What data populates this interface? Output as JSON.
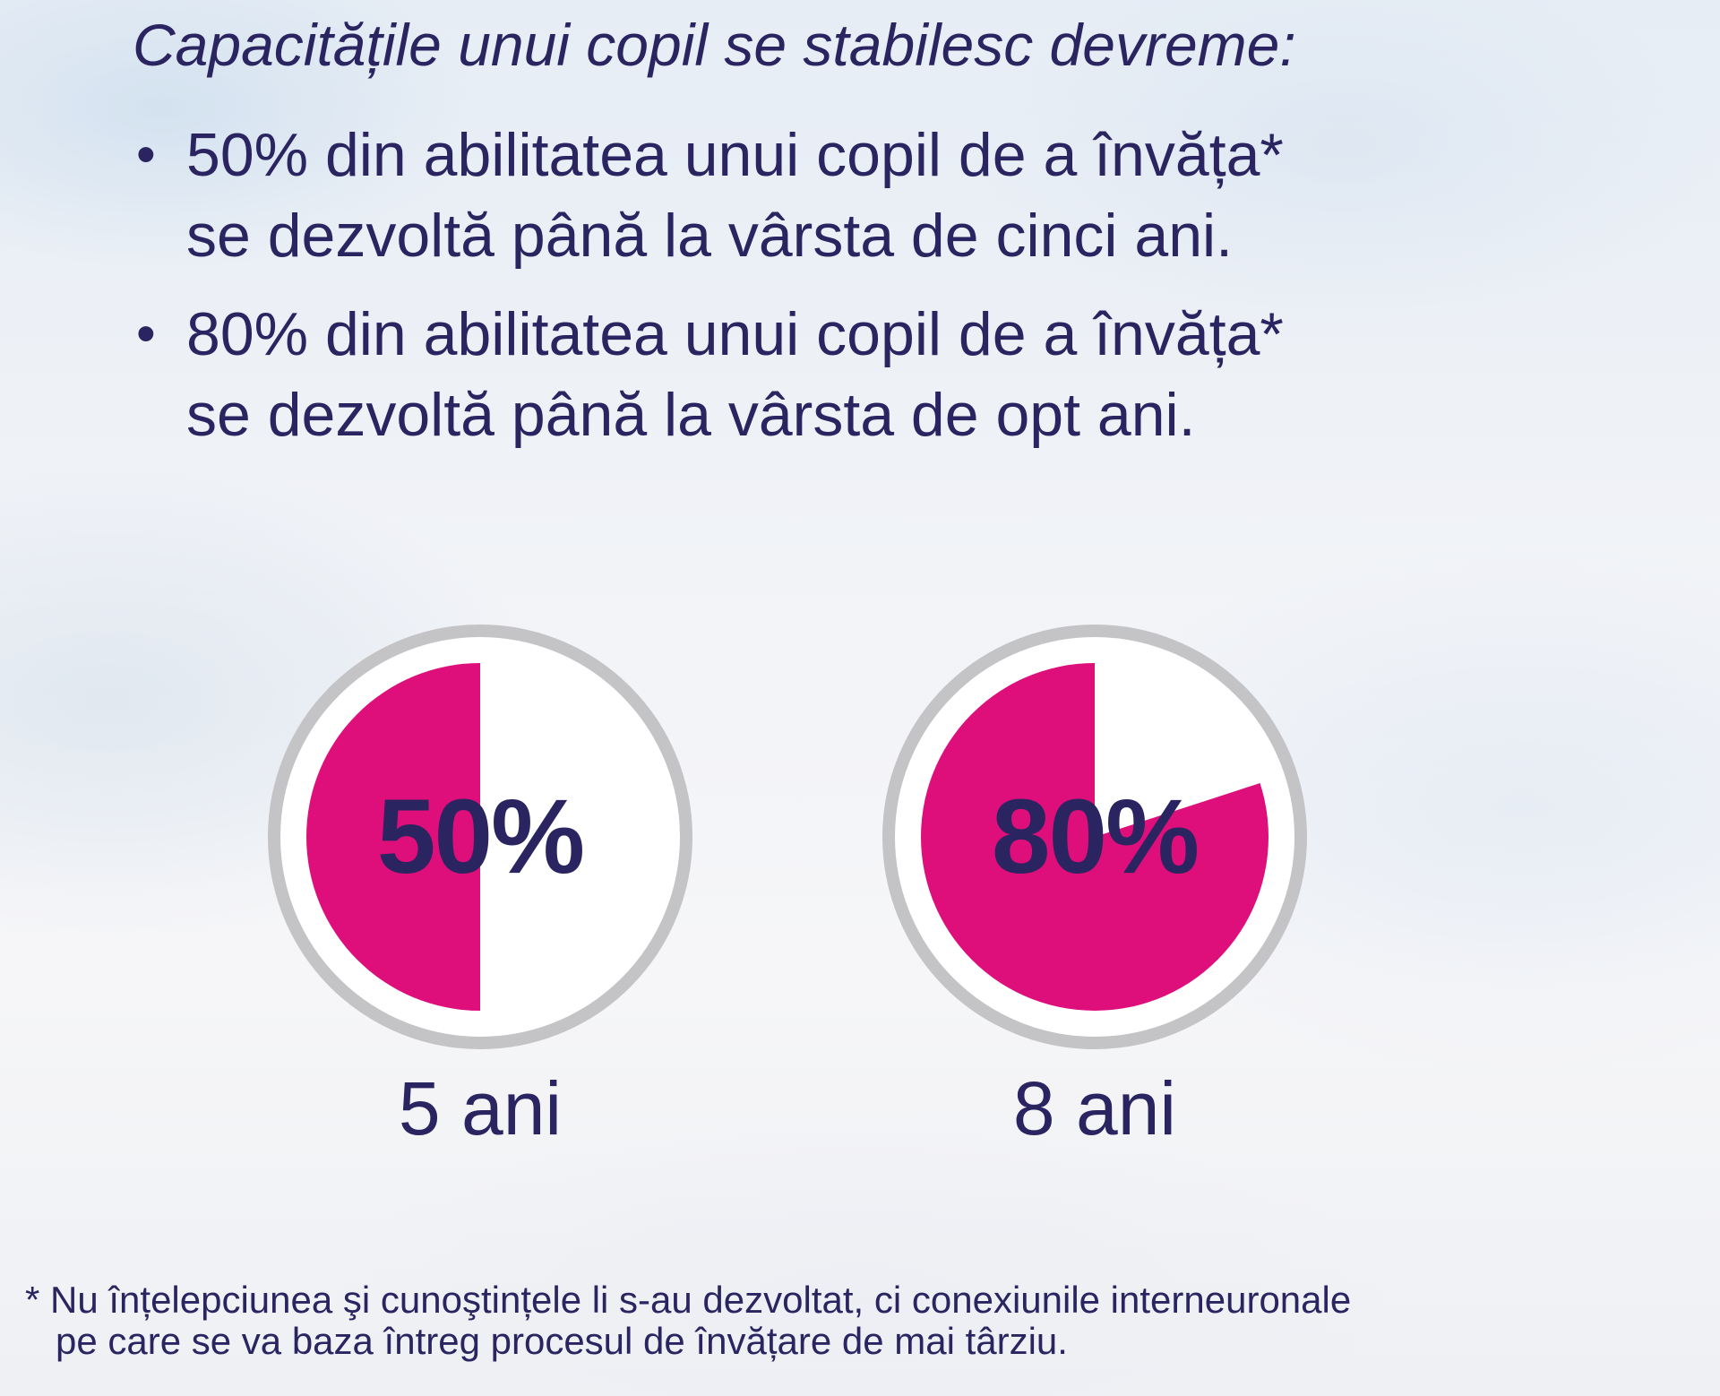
{
  "headline": "Capacitățile unui copil se stabilesc devreme:",
  "bullets": [
    {
      "marker": "•",
      "line1": "50% din abilitatea unui copil de a învăța*",
      "line2": "se dezvoltă până la vârsta de cinci ani."
    },
    {
      "marker": "•",
      "line1": "80% din abilitatea unui copil de a învăța*",
      "line2": "se dezvoltă până la vârsta de opt ani."
    }
  ],
  "chart_data": [
    {
      "type": "pie",
      "value_percent": 50,
      "label": "50%",
      "caption": "5 ani"
    },
    {
      "type": "pie",
      "value_percent": 80,
      "label": "80%",
      "caption": "8 ani"
    }
  ],
  "colors": {
    "text": "#2a2461",
    "fill": "#de0f7b",
    "ring": "#c4c4c6",
    "disc": "#ffffff"
  },
  "footnote": {
    "line1": "* Nu înțelepciunea şi cunoştințele li s-au dezvoltat, ci conexiunile interneuronale",
    "line2": "pe care se va baza întreg procesul de învățare de mai târziu."
  }
}
